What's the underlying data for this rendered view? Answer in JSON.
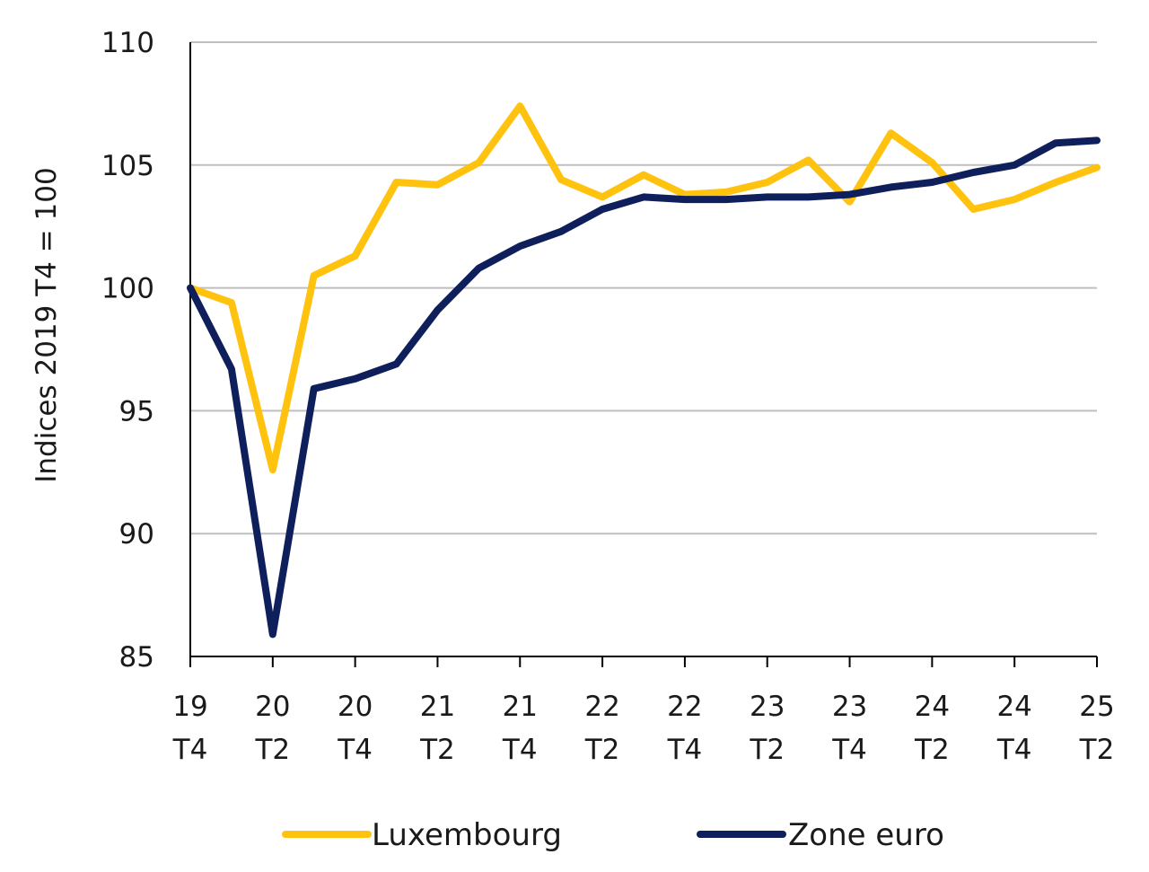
{
  "chart_data": {
    "type": "line",
    "ylabel": "Indices 2019 T4 = 100",
    "xlabel": "",
    "title": "",
    "ylim": [
      85,
      110
    ],
    "yticks": [
      85,
      90,
      95,
      100,
      105,
      110
    ],
    "grid": "horizontal",
    "legend_position": "bottom",
    "x": [
      "19 T4",
      "20 T1",
      "20 T2",
      "20 T3",
      "20 T4",
      "21 T1",
      "21 T2",
      "21 T3",
      "21 T4",
      "22 T1",
      "22 T2",
      "22 T3",
      "22 T4",
      "23 T1",
      "23 T2",
      "23 T3",
      "23 T4",
      "24 T1",
      "24 T2",
      "24 T3",
      "24 T4",
      "25 T1",
      "25 T2"
    ],
    "x_tick_labels": [
      {
        "top": "19",
        "bottom": "T4"
      },
      {
        "top": "20",
        "bottom": "T2"
      },
      {
        "top": "20",
        "bottom": "T4"
      },
      {
        "top": "21",
        "bottom": "T2"
      },
      {
        "top": "21",
        "bottom": "T4"
      },
      {
        "top": "22",
        "bottom": "T2"
      },
      {
        "top": "22",
        "bottom": "T4"
      },
      {
        "top": "23",
        "bottom": "T2"
      },
      {
        "top": "23",
        "bottom": "T4"
      },
      {
        "top": "24",
        "bottom": "T2"
      },
      {
        "top": "24",
        "bottom": "T4"
      },
      {
        "top": "25",
        "bottom": "T2"
      }
    ],
    "series": [
      {
        "name": "Luxembourg",
        "color": "#FFC20E",
        "values": [
          100.0,
          99.4,
          92.6,
          100.5,
          101.3,
          104.3,
          104.2,
          105.1,
          107.4,
          104.4,
          103.7,
          104.6,
          103.8,
          103.9,
          104.3,
          105.2,
          103.5,
          106.3,
          105.1,
          103.2,
          103.6,
          104.3,
          104.9
        ]
      },
      {
        "name": "Zone euro",
        "color": "#0E1F5B",
        "values": [
          100.0,
          96.7,
          85.9,
          95.9,
          96.3,
          96.9,
          99.1,
          100.8,
          101.7,
          102.3,
          103.2,
          103.7,
          103.6,
          103.6,
          103.7,
          103.7,
          103.8,
          104.1,
          104.3,
          104.7,
          105.0,
          105.9,
          106.0
        ]
      }
    ]
  },
  "legend": {
    "items": [
      {
        "label": "Luxembourg",
        "color": "#FFC20E"
      },
      {
        "label": "Zone euro",
        "color": "#0E1F5B"
      }
    ]
  }
}
